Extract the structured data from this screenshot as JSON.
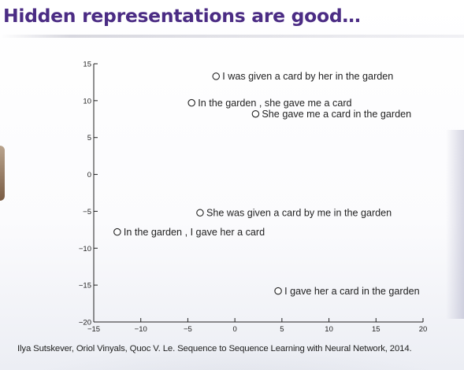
{
  "slide": {
    "title": "Hidden representations are good…",
    "citation": "Ilya Sutskever, Oriol Vinyals, Quoc V. Le. Sequence to Sequence Learning with Neural Network, 2014."
  },
  "chart_data": {
    "type": "scatter",
    "title": "",
    "xlabel": "",
    "ylabel": "",
    "xlim": [
      -15,
      20
    ],
    "ylim": [
      -20,
      15
    ],
    "xticks": [
      -15,
      -10,
      -5,
      0,
      5,
      10,
      15,
      20
    ],
    "yticks": [
      -20,
      -15,
      -10,
      -5,
      0,
      5,
      10,
      15
    ],
    "grid": false,
    "marker": "open-circle",
    "points": [
      {
        "x": -2.0,
        "y": 13.3,
        "label": "I was given a card by her in the garden"
      },
      {
        "x": -4.6,
        "y": 9.7,
        "label": "In the garden , she gave me a card"
      },
      {
        "x": 2.2,
        "y": 8.2,
        "label": "She gave me a card in the garden"
      },
      {
        "x": -3.7,
        "y": -5.2,
        "label": "She was given a card by me in the garden"
      },
      {
        "x": -12.5,
        "y": -7.8,
        "label": "In the garden , I gave her a card"
      },
      {
        "x": 4.6,
        "y": -15.8,
        "label": "I gave her a card in the garden"
      }
    ]
  }
}
